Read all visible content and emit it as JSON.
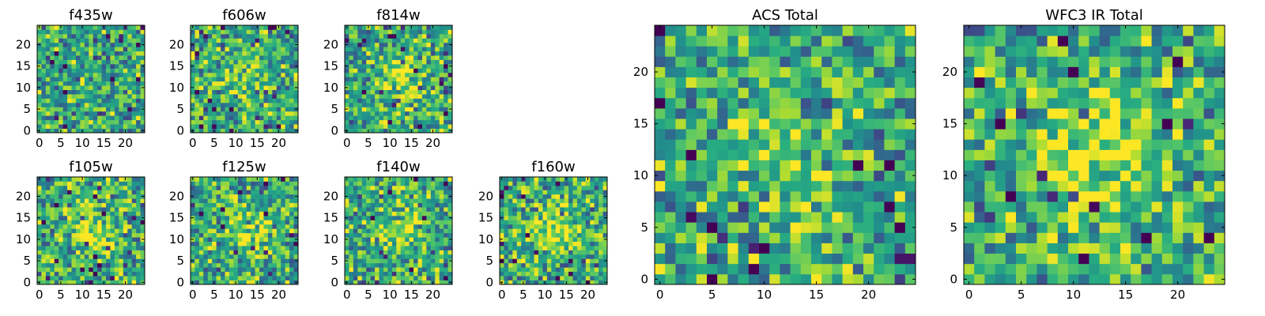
{
  "chart_data": [
    {
      "type": "heatmap",
      "title": "f435w",
      "xlabel": "",
      "ylabel": "",
      "xlim": [
        0,
        25
      ],
      "ylim": [
        0,
        25
      ],
      "grid": false,
      "colormap": "viridis",
      "x_ticks": [
        "0",
        "5",
        "10",
        "15",
        "20"
      ],
      "y_ticks": [
        "0",
        "5",
        "10",
        "15",
        "20"
      ],
      "center_peak": 0.0
    },
    {
      "type": "heatmap",
      "title": "f606w",
      "xlabel": "",
      "ylabel": "",
      "xlim": [
        0,
        25
      ],
      "ylim": [
        0,
        25
      ],
      "grid": false,
      "colormap": "viridis",
      "x_ticks": [
        "0",
        "5",
        "10",
        "15",
        "20"
      ],
      "y_ticks": [
        "0",
        "5",
        "10",
        "15",
        "20"
      ],
      "center_peak": 0.15
    },
    {
      "type": "heatmap",
      "title": "f814w",
      "xlabel": "",
      "ylabel": "",
      "xlim": [
        0,
        25
      ],
      "ylim": [
        0,
        25
      ],
      "grid": false,
      "colormap": "viridis",
      "x_ticks": [
        "0",
        "5",
        "10",
        "15",
        "20"
      ],
      "y_ticks": [
        "0",
        "5",
        "10",
        "15",
        "20"
      ],
      "center_peak": 0.25
    },
    {
      "type": "heatmap",
      "title": "f105w",
      "xlabel": "",
      "ylabel": "",
      "xlim": [
        0,
        25
      ],
      "ylim": [
        0,
        25
      ],
      "grid": false,
      "colormap": "viridis",
      "x_ticks": [
        "0",
        "5",
        "10",
        "15",
        "20"
      ],
      "y_ticks": [
        "0",
        "5",
        "10",
        "15",
        "20"
      ],
      "center_peak": 0.3
    },
    {
      "type": "heatmap",
      "title": "f125w",
      "xlabel": "",
      "ylabel": "",
      "xlim": [
        0,
        25
      ],
      "ylim": [
        0,
        25
      ],
      "grid": false,
      "colormap": "viridis",
      "x_ticks": [
        "0",
        "5",
        "10",
        "15",
        "20"
      ],
      "y_ticks": [
        "0",
        "5",
        "10",
        "15",
        "20"
      ],
      "center_peak": 0.3
    },
    {
      "type": "heatmap",
      "title": "f140w",
      "xlabel": "",
      "ylabel": "",
      "xlim": [
        0,
        25
      ],
      "ylim": [
        0,
        25
      ],
      "grid": false,
      "colormap": "viridis",
      "x_ticks": [
        "0",
        "5",
        "10",
        "15",
        "20"
      ],
      "y_ticks": [
        "0",
        "5",
        "10",
        "15",
        "20"
      ],
      "center_peak": 0.3
    },
    {
      "type": "heatmap",
      "title": "f160w",
      "xlabel": "",
      "ylabel": "",
      "xlim": [
        0,
        25
      ],
      "ylim": [
        0,
        25
      ],
      "grid": false,
      "colormap": "viridis",
      "x_ticks": [
        "0",
        "5",
        "10",
        "15",
        "20"
      ],
      "y_ticks": [
        "0",
        "5",
        "10",
        "15",
        "20"
      ],
      "center_peak": 0.35
    },
    {
      "type": "heatmap",
      "title": "ACS Total",
      "xlabel": "",
      "ylabel": "",
      "xlim": [
        0,
        25
      ],
      "ylim": [
        0,
        25
      ],
      "grid": false,
      "colormap": "viridis",
      "x_ticks": [
        "0",
        "5",
        "10",
        "15",
        "20"
      ],
      "y_ticks": [
        "0",
        "5",
        "10",
        "15",
        "20"
      ],
      "center_peak": 0.2
    },
    {
      "type": "heatmap",
      "title": "WFC3 IR Total",
      "xlabel": "",
      "ylabel": "",
      "xlim": [
        0,
        25
      ],
      "ylim": [
        0,
        25
      ],
      "grid": false,
      "colormap": "viridis",
      "x_ticks": [
        "0",
        "5",
        "10",
        "15",
        "20"
      ],
      "y_ticks": [
        "0",
        "5",
        "10",
        "15",
        "20"
      ],
      "center_peak": 0.45
    }
  ]
}
